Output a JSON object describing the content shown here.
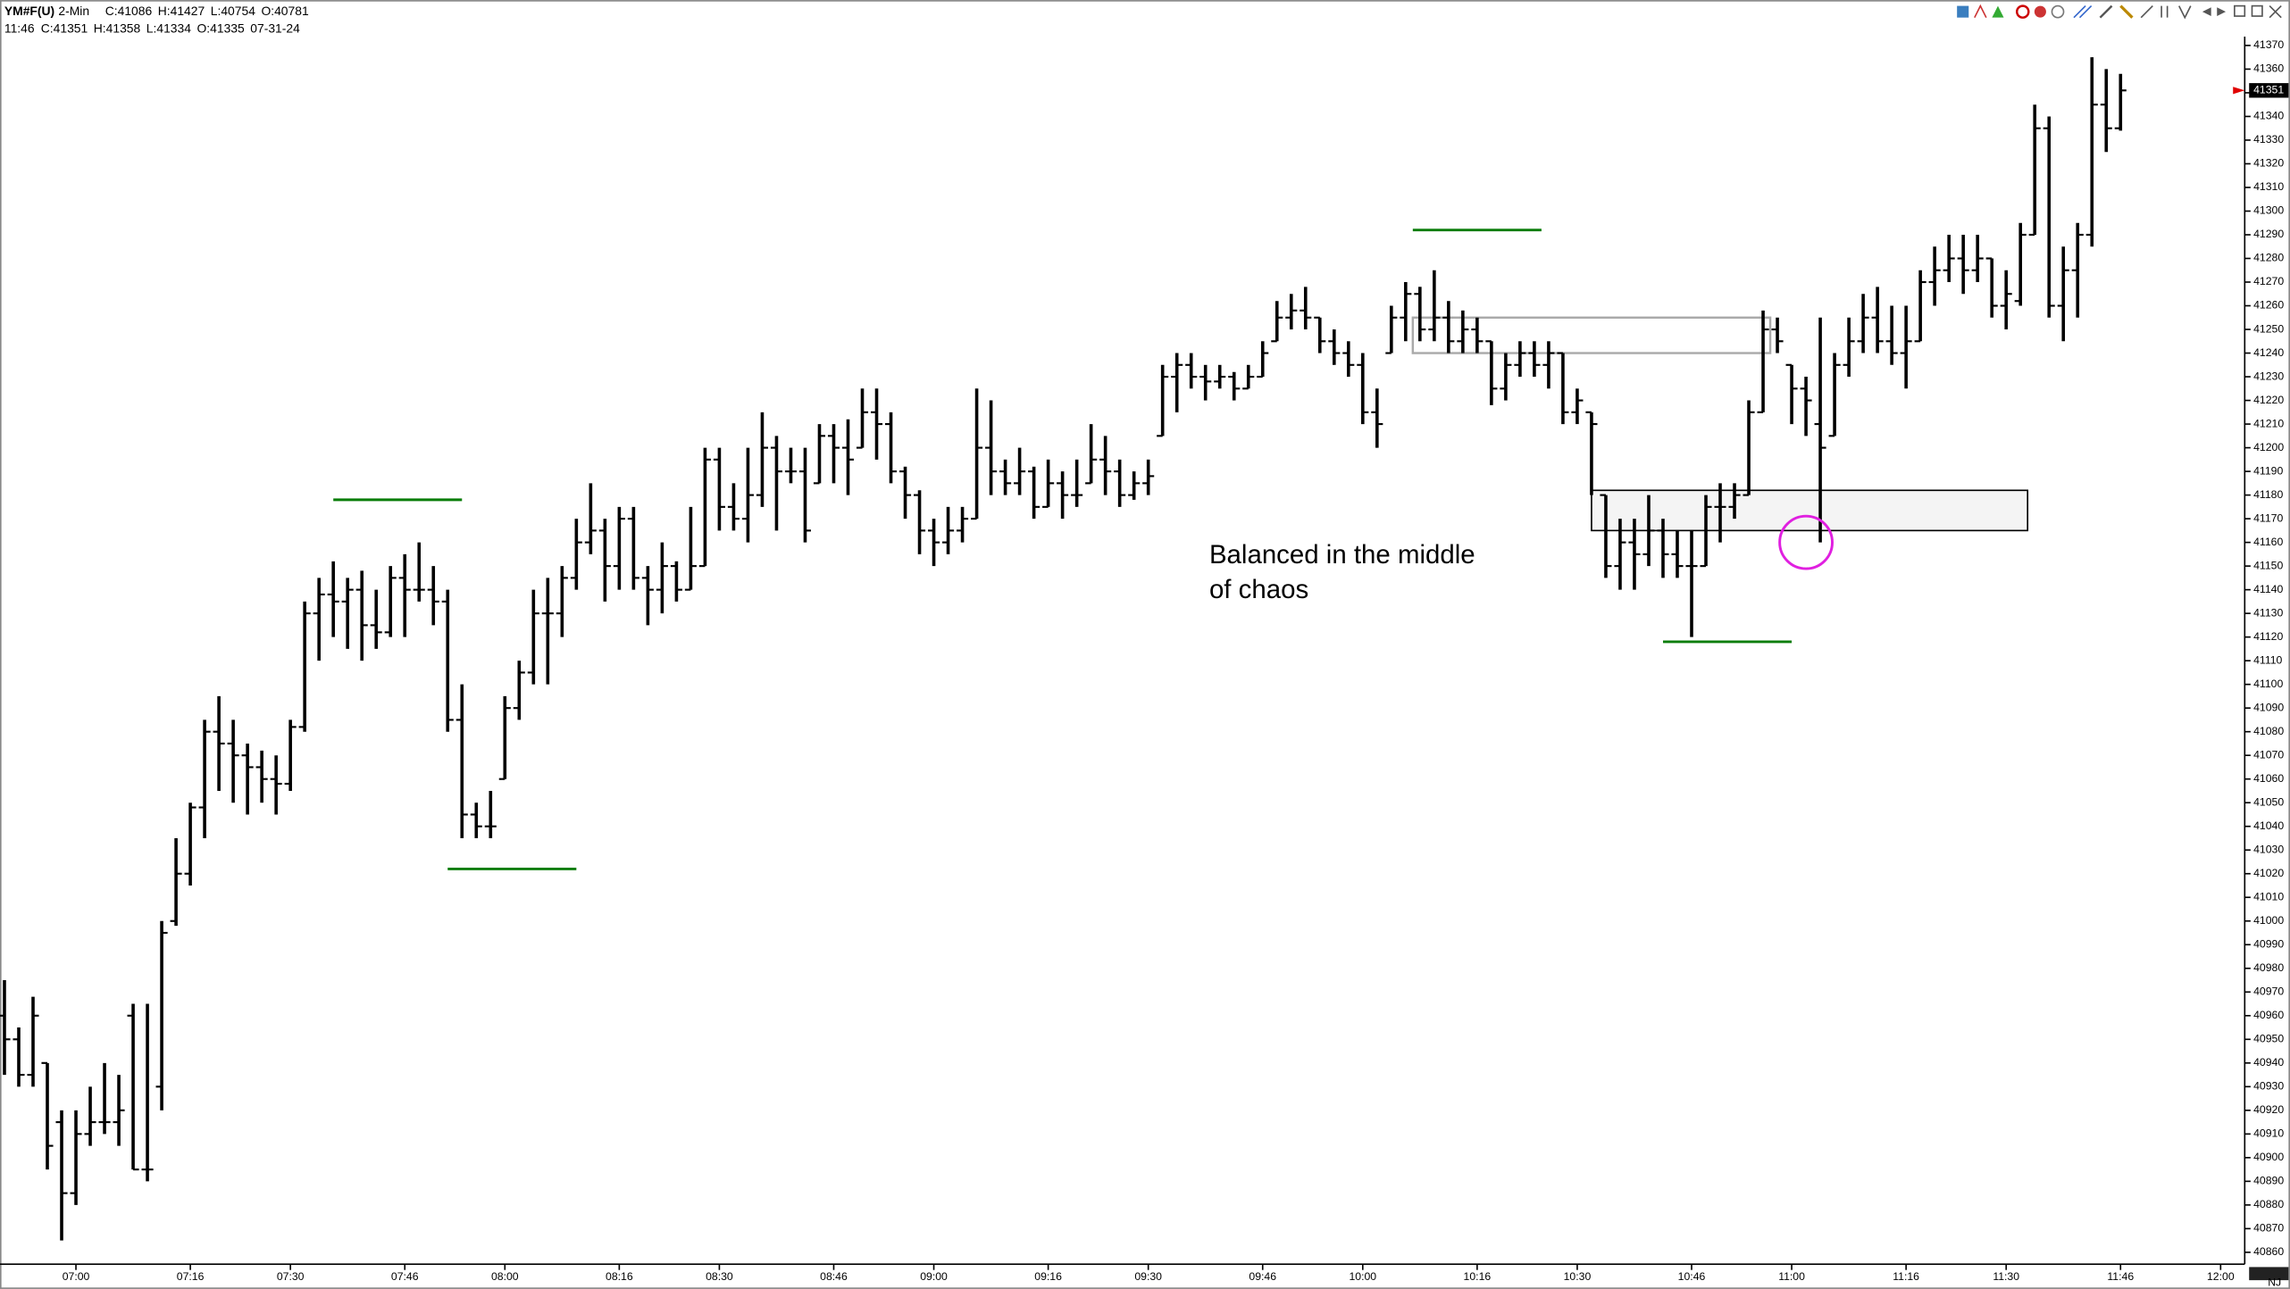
{
  "chart_data": {
    "type": "ohlc",
    "title": "YM#F(U)",
    "interval": "2-Min",
    "summary": [
      "C:41086",
      "H:41427",
      "L:40754",
      "O:40781"
    ],
    "info": [
      "11:46",
      "C:41351",
      "H:41358",
      "L:41334",
      "O:41335",
      "07-31-24"
    ],
    "corner_label": "NJ",
    "ylim": [
      40855,
      41375
    ],
    "yticks": [
      40860,
      40870,
      40880,
      40890,
      40900,
      40910,
      40920,
      40930,
      40940,
      40950,
      40960,
      40970,
      40980,
      40990,
      41000,
      41010,
      41020,
      41030,
      41040,
      41050,
      41060,
      41070,
      41080,
      41090,
      41100,
      41110,
      41120,
      41130,
      41140,
      41150,
      41160,
      41170,
      41180,
      41190,
      41200,
      41210,
      41220,
      41230,
      41240,
      41250,
      41260,
      41270,
      41280,
      41290,
      41300,
      41310,
      41320,
      41330,
      41340,
      41350,
      41360,
      41370
    ],
    "xticks": [
      "07:00",
      "07:16",
      "07:30",
      "07:46",
      "08:00",
      "08:16",
      "08:30",
      "08:46",
      "09:00",
      "09:16",
      "09:30",
      "09:46",
      "10:00",
      "10:16",
      "10:30",
      "10:46",
      "11:00",
      "11:16",
      "11:30",
      "11:46",
      "12:00"
    ],
    "last_price": 41351,
    "x": [
      "06:50",
      "06:52",
      "06:54",
      "06:56",
      "06:58",
      "07:00",
      "07:02",
      "07:04",
      "07:06",
      "07:08",
      "07:10",
      "07:12",
      "07:14",
      "07:16",
      "07:18",
      "07:20",
      "07:22",
      "07:24",
      "07:26",
      "07:28",
      "07:30",
      "07:32",
      "07:34",
      "07:36",
      "07:38",
      "07:40",
      "07:42",
      "07:44",
      "07:46",
      "07:48",
      "07:50",
      "07:52",
      "07:54",
      "07:56",
      "07:58",
      "08:00",
      "08:02",
      "08:04",
      "08:06",
      "08:08",
      "08:10",
      "08:12",
      "08:14",
      "08:16",
      "08:18",
      "08:20",
      "08:22",
      "08:24",
      "08:26",
      "08:28",
      "08:30",
      "08:32",
      "08:34",
      "08:36",
      "08:38",
      "08:40",
      "08:42",
      "08:44",
      "08:46",
      "08:48",
      "08:50",
      "08:52",
      "08:54",
      "08:56",
      "08:58",
      "09:00",
      "09:02",
      "09:04",
      "09:06",
      "09:08",
      "09:10",
      "09:12",
      "09:14",
      "09:16",
      "09:18",
      "09:20",
      "09:22",
      "09:24",
      "09:26",
      "09:28",
      "09:30",
      "09:32",
      "09:34",
      "09:36",
      "09:38",
      "09:40",
      "09:42",
      "09:44",
      "09:46",
      "09:48",
      "09:50",
      "09:52",
      "09:54",
      "09:56",
      "09:58",
      "10:00",
      "10:02",
      "10:04",
      "10:06",
      "10:08",
      "10:10",
      "10:12",
      "10:14",
      "10:16",
      "10:18",
      "10:20",
      "10:22",
      "10:24",
      "10:26",
      "10:28",
      "10:30",
      "10:32",
      "10:34",
      "10:36",
      "10:38",
      "10:40",
      "10:42",
      "10:44",
      "10:46",
      "10:48",
      "10:50",
      "10:52",
      "10:54",
      "10:56",
      "10:58",
      "11:00",
      "11:02",
      "11:04",
      "11:06",
      "11:08",
      "11:10",
      "11:12",
      "11:14",
      "11:16",
      "11:18",
      "11:20",
      "11:22",
      "11:24",
      "11:26",
      "11:28",
      "11:30",
      "11:32",
      "11:34",
      "11:36",
      "11:38",
      "11:40",
      "11:42",
      "11:44",
      "11:46"
    ],
    "ohlc": [
      [
        40960,
        40975,
        40935,
        40950
      ],
      [
        40950,
        40955,
        40930,
        40935
      ],
      [
        40935,
        40968,
        40930,
        40960
      ],
      [
        40940,
        40940,
        40895,
        40905
      ],
      [
        40915,
        40920,
        40865,
        40885
      ],
      [
        40885,
        40920,
        40880,
        40910
      ],
      [
        40910,
        40930,
        40905,
        40915
      ],
      [
        40915,
        40940,
        40910,
        40915
      ],
      [
        40915,
        40935,
        40905,
        40920
      ],
      [
        40960,
        40965,
        40895,
        40895
      ],
      [
        40895,
        40965,
        40890,
        40895
      ],
      [
        40930,
        41000,
        40920,
        40995
      ],
      [
        41000,
        41035,
        40998,
        41020
      ],
      [
        41020,
        41050,
        41015,
        41048
      ],
      [
        41048,
        41085,
        41035,
        41080
      ],
      [
        41080,
        41095,
        41055,
        41075
      ],
      [
        41075,
        41085,
        41050,
        41070
      ],
      [
        41070,
        41075,
        41045,
        41065
      ],
      [
        41065,
        41072,
        41050,
        41060
      ],
      [
        41060,
        41070,
        41045,
        41058
      ],
      [
        41058,
        41085,
        41055,
        41082
      ],
      [
        41082,
        41135,
        41080,
        41130
      ],
      [
        41130,
        41145,
        41110,
        41138
      ],
      [
        41138,
        41152,
        41120,
        41135
      ],
      [
        41135,
        41145,
        41115,
        41140
      ],
      [
        41140,
        41148,
        41110,
        41125
      ],
      [
        41125,
        41140,
        41115,
        41122
      ],
      [
        41122,
        41150,
        41120,
        41145
      ],
      [
        41145,
        41155,
        41120,
        41140
      ],
      [
        41140,
        41160,
        41135,
        41140
      ],
      [
        41140,
        41150,
        41125,
        41135
      ],
      [
        41135,
        41140,
        41080,
        41085
      ],
      [
        41085,
        41100,
        41035,
        41045
      ],
      [
        41045,
        41050,
        41035,
        41040
      ],
      [
        41040,
        41055,
        41035,
        41040
      ],
      [
        41060,
        41095,
        41060,
        41090
      ],
      [
        41090,
        41110,
        41085,
        41105
      ],
      [
        41105,
        41140,
        41100,
        41130
      ],
      [
        41130,
        41145,
        41100,
        41130
      ],
      [
        41130,
        41150,
        41120,
        41145
      ],
      [
        41145,
        41170,
        41140,
        41160
      ],
      [
        41160,
        41185,
        41155,
        41165
      ],
      [
        41165,
        41170,
        41135,
        41150
      ],
      [
        41150,
        41175,
        41140,
        41170
      ],
      [
        41170,
        41175,
        41140,
        41145
      ],
      [
        41145,
        41150,
        41125,
        41140
      ],
      [
        41140,
        41160,
        41130,
        41150
      ],
      [
        41150,
        41152,
        41135,
        41140
      ],
      [
        41140,
        41175,
        41140,
        41150
      ],
      [
        41150,
        41200,
        41150,
        41195
      ],
      [
        41195,
        41200,
        41165,
        41175
      ],
      [
        41175,
        41185,
        41165,
        41170
      ],
      [
        41170,
        41200,
        41160,
        41180
      ],
      [
        41180,
        41215,
        41175,
        41200
      ],
      [
        41200,
        41205,
        41165,
        41190
      ],
      [
        41190,
        41200,
        41185,
        41190
      ],
      [
        41190,
        41200,
        41160,
        41165
      ],
      [
        41185,
        41210,
        41185,
        41205
      ],
      [
        41205,
        41210,
        41185,
        41200
      ],
      [
        41200,
        41212,
        41180,
        41195
      ],
      [
        41200,
        41225,
        41200,
        41215
      ],
      [
        41215,
        41225,
        41195,
        41210
      ],
      [
        41210,
        41215,
        41185,
        41190
      ],
      [
        41190,
        41192,
        41170,
        41180
      ],
      [
        41180,
        41182,
        41155,
        41165
      ],
      [
        41165,
        41170,
        41150,
        41160
      ],
      [
        41160,
        41175,
        41155,
        41165
      ],
      [
        41165,
        41175,
        41160,
        41170
      ],
      [
        41170,
        41225,
        41170,
        41200
      ],
      [
        41200,
        41220,
        41180,
        41190
      ],
      [
        41190,
        41195,
        41180,
        41185
      ],
      [
        41185,
        41200,
        41180,
        41190
      ],
      [
        41190,
        41192,
        41170,
        41175
      ],
      [
        41175,
        41195,
        41175,
        41185
      ],
      [
        41185,
        41190,
        41170,
        41180
      ],
      [
        41180,
        41195,
        41175,
        41180
      ],
      [
        41185,
        41210,
        41185,
        41195
      ],
      [
        41195,
        41205,
        41180,
        41190
      ],
      [
        41190,
        41195,
        41175,
        41180
      ],
      [
        41180,
        41190,
        41178,
        41185
      ],
      [
        41185,
        41195,
        41180,
        41188
      ],
      [
        41205,
        41235,
        41205,
        41230
      ],
      [
        41230,
        41240,
        41215,
        41235
      ],
      [
        41235,
        41240,
        41225,
        41230
      ],
      [
        41230,
        41235,
        41220,
        41228
      ],
      [
        41228,
        41235,
        41225,
        41230
      ],
      [
        41230,
        41232,
        41220,
        41225
      ],
      [
        41225,
        41235,
        41225,
        41230
      ],
      [
        41230,
        41245,
        41230,
        41240
      ],
      [
        41245,
        41262,
        41245,
        41255
      ],
      [
        41255,
        41265,
        41250,
        41258
      ],
      [
        41258,
        41268,
        41250,
        41255
      ],
      [
        41255,
        41255,
        41240,
        41245
      ],
      [
        41245,
        41250,
        41235,
        41240
      ],
      [
        41240,
        41245,
        41230,
        41235
      ],
      [
        41235,
        41240,
        41210,
        41215
      ],
      [
        41215,
        41225,
        41200,
        41210
      ],
      [
        41240,
        41260,
        41240,
        41255
      ],
      [
        41255,
        41270,
        41245,
        41265
      ],
      [
        41265,
        41268,
        41245,
        41250
      ],
      [
        41250,
        41275,
        41245,
        41255
      ],
      [
        41255,
        41262,
        41240,
        41245
      ],
      [
        41245,
        41258,
        41240,
        41250
      ],
      [
        41250,
        41255,
        41240,
        41245
      ],
      [
        41245,
        41245,
        41218,
        41225
      ],
      [
        41225,
        41240,
        41220,
        41235
      ],
      [
        41235,
        41245,
        41230,
        41240
      ],
      [
        41240,
        41245,
        41230,
        41235
      ],
      [
        41235,
        41245,
        41225,
        41240
      ],
      [
        41240,
        41240,
        41210,
        41215
      ],
      [
        41215,
        41225,
        41210,
        41220
      ],
      [
        41215,
        41215,
        41180,
        41210
      ],
      [
        41180,
        41180,
        41145,
        41150
      ],
      [
        41150,
        41170,
        41140,
        41160
      ],
      [
        41160,
        41170,
        41140,
        41155
      ],
      [
        41155,
        41180,
        41150,
        41165
      ],
      [
        41165,
        41170,
        41145,
        41155
      ],
      [
        41155,
        41165,
        41145,
        41150
      ],
      [
        41150,
        41165,
        41120,
        41150
      ],
      [
        41150,
        41180,
        41150,
        41175
      ],
      [
        41175,
        41185,
        41160,
        41175
      ],
      [
        41175,
        41185,
        41170,
        41180
      ],
      [
        41180,
        41220,
        41180,
        41215
      ],
      [
        41215,
        41258,
        41215,
        41250
      ],
      [
        41250,
        41255,
        41240,
        41245
      ],
      [
        41235,
        41235,
        41210,
        41225
      ],
      [
        41225,
        41230,
        41205,
        41220
      ],
      [
        41210,
        41255,
        41160,
        41200
      ],
      [
        41205,
        41240,
        41205,
        41235
      ],
      [
        41235,
        41255,
        41230,
        41245
      ],
      [
        41245,
        41265,
        41240,
        41255
      ],
      [
        41255,
        41268,
        41240,
        41245
      ],
      [
        41245,
        41260,
        41235,
        41240
      ],
      [
        41240,
        41260,
        41225,
        41245
      ],
      [
        41245,
        41275,
        41245,
        41270
      ],
      [
        41270,
        41285,
        41260,
        41275
      ],
      [
        41275,
        41290,
        41270,
        41280
      ],
      [
        41280,
        41290,
        41265,
        41275
      ],
      [
        41275,
        41290,
        41270,
        41280
      ],
      [
        41280,
        41280,
        41255,
        41260
      ],
      [
        41260,
        41275,
        41250,
        41265
      ],
      [
        41262,
        41295,
        41260,
        41290
      ],
      [
        41290,
        41345,
        41290,
        41335
      ],
      [
        41335,
        41340,
        41255,
        41260
      ],
      [
        41260,
        41285,
        41245,
        41275
      ],
      [
        41275,
        41295,
        41255,
        41290
      ],
      [
        41290,
        41365,
        41285,
        41345
      ],
      [
        41345,
        41360,
        41325,
        41335
      ],
      [
        41335,
        41358,
        41334,
        41351
      ]
    ],
    "levels": [
      {
        "value": 41178,
        "from": "07:36",
        "to": "07:54"
      },
      {
        "value": 41022,
        "from": "07:52",
        "to": "08:10"
      },
      {
        "value": 41292,
        "from": "10:07",
        "to": "10:25"
      },
      {
        "value": 41118,
        "from": "10:42",
        "to": "11:00"
      }
    ],
    "boxes": [
      {
        "top": 41255,
        "bottom": 41240,
        "from": "10:07",
        "to": "10:57"
      },
      {
        "top": 41182,
        "bottom": 41165,
        "from": "10:32",
        "to": "11:33"
      }
    ],
    "circle": {
      "x": "11:02",
      "value": 41160
    },
    "note": [
      "Balanced in the middle",
      "of chaos"
    ]
  }
}
